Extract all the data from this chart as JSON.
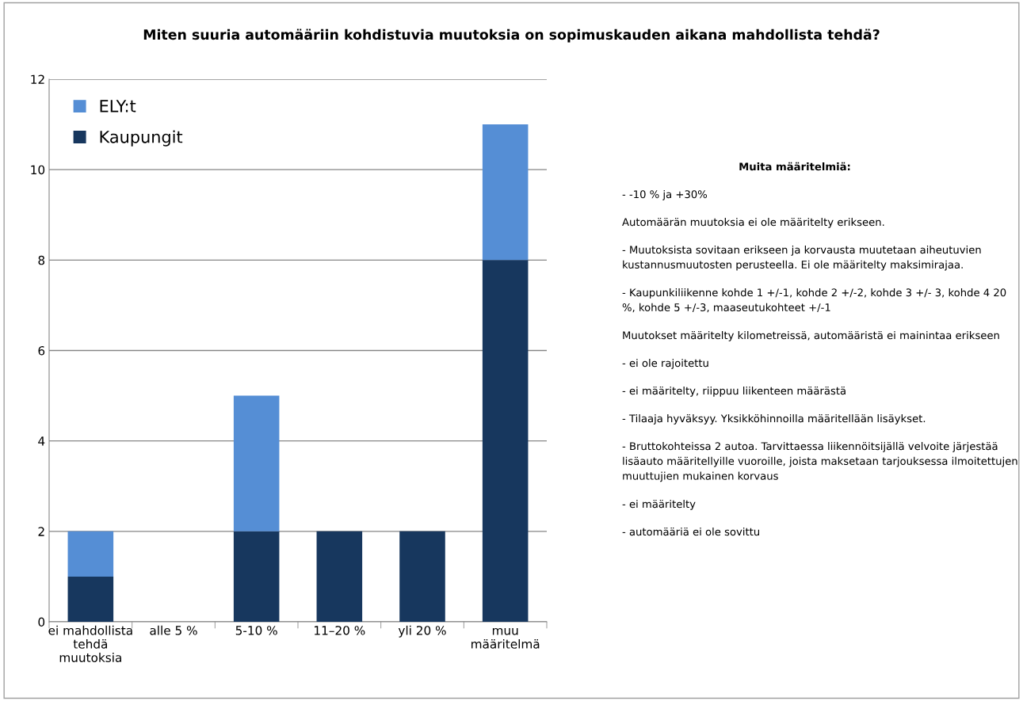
{
  "chart_data": {
    "type": "bar",
    "title": "Miten suuria automääriin kohdistuvia muutoksia on sopimuskauden aikana mahdollista tehdä?",
    "categories": [
      "ei mahdollista\ntehdä\nmuutoksia",
      "alle 5 %",
      "5-10 %",
      "11–20 %",
      "yli 20 %",
      "muu\nmääritelmä"
    ],
    "stacked": true,
    "series": [
      {
        "name": "Kaupungit",
        "color": "#17375e",
        "values": [
          1,
          0,
          2,
          2,
          2,
          8
        ]
      },
      {
        "name": "ELY:t",
        "color": "#558ed5",
        "values": [
          1,
          0,
          3,
          0,
          0,
          3
        ]
      }
    ],
    "ylim": [
      0,
      12
    ],
    "yticks": [
      0,
      2,
      4,
      6,
      8,
      10,
      12
    ],
    "grid": "y",
    "legend": "top left",
    "annotations": [
      "Muita määritelmiä:",
      "- -10 % ja +30%",
      "Automäärän muutoksia ei ole määritelty erikseen.",
      "- Muutoksista sovitaan erikseen ja korvausta muutetaan aiheutuvien kustannusmuutosten perusteella. Ei ole määritelty maksimirajaa.",
      "- Kaupunkiliikenne kohde 1 +/-1, kohde 2 +/-2, kohde 3 +/- 3, kohde 4 20 %, kohde 5 +/-3, maaseutukohteet +/-1",
      "Muutokset määritelty kilometreissä, automääristä ei mainintaa erikseen",
      "- ei ole rajoitettu",
      "- ei määritelty, riippuu liikenteen määrästä",
      "- Tilaaja hyväksyy. Yksikköhinnoilla määritellään lisäykset.",
      "- Bruttokohteissa 2 autoa. Tarvittaessa liikennöitsijällä velvoite järjestää lisäauto määritellyille vuoroille, joista maksetaan tarjouksessa ilmoitettujen muuttujien mukainen korvaus",
      "- ei määritelty",
      "- automääriä ei ole sovittu"
    ]
  }
}
